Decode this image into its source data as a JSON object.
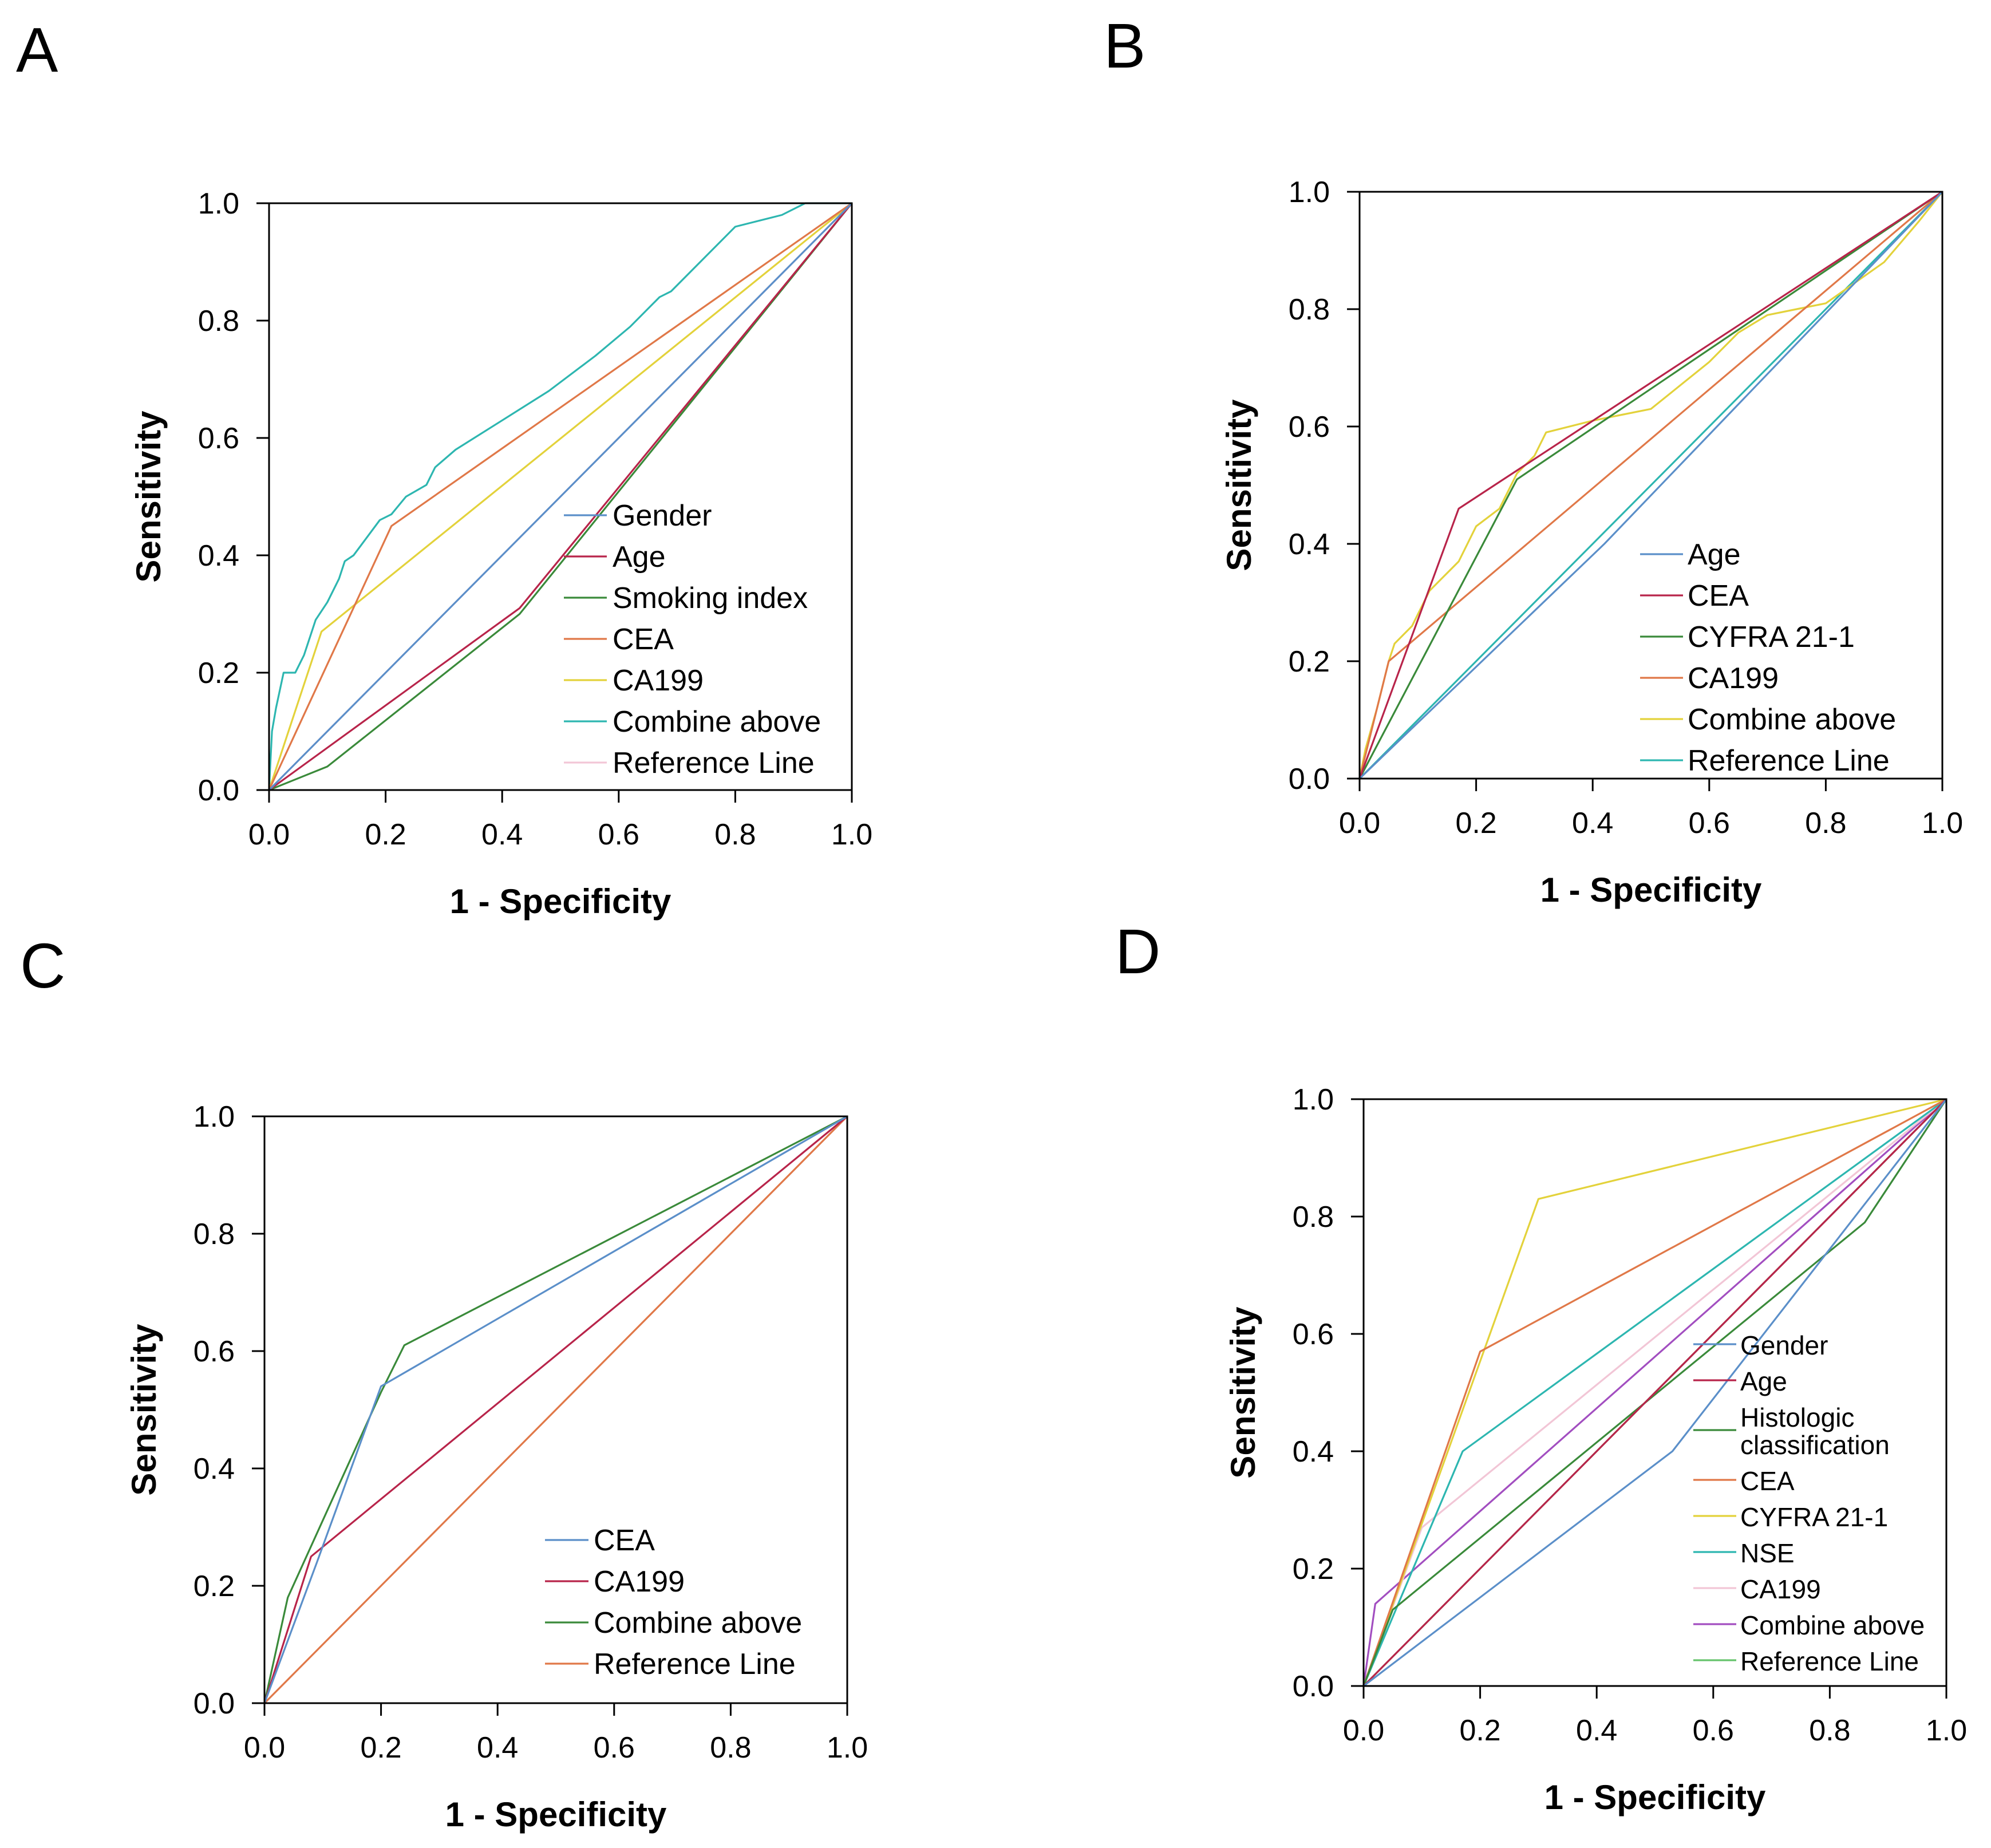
{
  "chart_data": [
    {
      "type": "line",
      "panel": "A",
      "xlabel": "1 - Specificity",
      "ylabel": "Sensitivity",
      "xlim": [
        0,
        1
      ],
      "ylim": [
        0,
        1
      ],
      "xticks": [
        "0.0",
        "0.2",
        "0.4",
        "0.6",
        "0.8",
        "1.0"
      ],
      "yticks": [
        "0.0",
        "0.2",
        "0.4",
        "0.6",
        "0.8",
        "1.0"
      ],
      "legend_position": "lower-right",
      "series": [
        {
          "name": "Gender",
          "color": "#5b8fc9",
          "points": [
            [
              0,
              0
            ],
            [
              1,
              1
            ]
          ]
        },
        {
          "name": "Age",
          "color": "#b8244a",
          "points": [
            [
              0,
              0
            ],
            [
              0.43,
              0.31
            ],
            [
              1,
              1
            ]
          ]
        },
        {
          "name": "Smoking index",
          "color": "#3a8a3a",
          "points": [
            [
              0,
              0
            ],
            [
              0.1,
              0.04
            ],
            [
              0.43,
              0.3
            ],
            [
              1,
              1
            ]
          ]
        },
        {
          "name": "CEA",
          "color": "#e07848",
          "points": [
            [
              0,
              0
            ],
            [
              0.21,
              0.45
            ],
            [
              1,
              1
            ]
          ]
        },
        {
          "name": "CA199",
          "color": "#e3d23b",
          "points": [
            [
              0,
              0
            ],
            [
              0.09,
              0.27
            ],
            [
              1,
              1
            ]
          ]
        },
        {
          "name": "Combine above",
          "color": "#2db6b0",
          "points": [
            [
              0,
              0
            ],
            [
              0.005,
              0.1
            ],
            [
              0.012,
              0.14
            ],
            [
              0.025,
              0.2
            ],
            [
              0.045,
              0.2
            ],
            [
              0.06,
              0.23
            ],
            [
              0.08,
              0.29
            ],
            [
              0.1,
              0.32
            ],
            [
              0.12,
              0.36
            ],
            [
              0.13,
              0.39
            ],
            [
              0.145,
              0.4
            ],
            [
              0.16,
              0.42
            ],
            [
              0.19,
              0.46
            ],
            [
              0.21,
              0.47
            ],
            [
              0.235,
              0.5
            ],
            [
              0.27,
              0.52
            ],
            [
              0.285,
              0.55
            ],
            [
              0.32,
              0.58
            ],
            [
              0.4,
              0.63
            ],
            [
              0.48,
              0.68
            ],
            [
              0.56,
              0.74
            ],
            [
              0.62,
              0.79
            ],
            [
              0.67,
              0.84
            ],
            [
              0.69,
              0.85
            ],
            [
              0.74,
              0.9
            ],
            [
              0.8,
              0.96
            ],
            [
              0.88,
              0.98
            ],
            [
              0.92,
              1.0
            ],
            [
              1,
              1
            ]
          ]
        },
        {
          "name": "Reference Line",
          "color": "#f2c6d6",
          "points": [
            [
              0,
              0
            ],
            [
              1,
              1
            ]
          ]
        }
      ]
    },
    {
      "type": "line",
      "panel": "B",
      "xlabel": "1 - Specificity",
      "ylabel": "Sensitivity",
      "xlim": [
        0,
        1
      ],
      "ylim": [
        0,
        1
      ],
      "xticks": [
        "0.0",
        "0.2",
        "0.4",
        "0.6",
        "0.8",
        "1.0"
      ],
      "yticks": [
        "0.0",
        "0.2",
        "0.4",
        "0.6",
        "0.8",
        "1.0"
      ],
      "legend_position": "lower-right",
      "series": [
        {
          "name": "Age",
          "color": "#5b8fc9",
          "points": [
            [
              0,
              0
            ],
            [
              0.42,
              0.4
            ],
            [
              1,
              1
            ]
          ]
        },
        {
          "name": "CEA",
          "color": "#b8244a",
          "points": [
            [
              0,
              0
            ],
            [
              0.17,
              0.46
            ],
            [
              1,
              1
            ]
          ]
        },
        {
          "name": "CYFRA 21-1",
          "color": "#3a8a3a",
          "points": [
            [
              0,
              0
            ],
            [
              0.27,
              0.51
            ],
            [
              1,
              1
            ]
          ]
        },
        {
          "name": "CA199",
          "color": "#e07848",
          "points": [
            [
              0,
              0
            ],
            [
              0.05,
              0.2
            ],
            [
              1,
              1
            ]
          ]
        },
        {
          "name": "Combine above",
          "color": "#e3d23b",
          "points": [
            [
              0,
              0
            ],
            [
              0.01,
              0.05
            ],
            [
              0.03,
              0.12
            ],
            [
              0.05,
              0.2
            ],
            [
              0.06,
              0.23
            ],
            [
              0.09,
              0.26
            ],
            [
              0.12,
              0.32
            ],
            [
              0.14,
              0.34
            ],
            [
              0.17,
              0.37
            ],
            [
              0.2,
              0.43
            ],
            [
              0.24,
              0.46
            ],
            [
              0.27,
              0.52
            ],
            [
              0.3,
              0.55
            ],
            [
              0.32,
              0.59
            ],
            [
              0.4,
              0.61
            ],
            [
              0.45,
              0.62
            ],
            [
              0.5,
              0.63
            ],
            [
              0.55,
              0.67
            ],
            [
              0.6,
              0.71
            ],
            [
              0.65,
              0.76
            ],
            [
              0.7,
              0.79
            ],
            [
              0.75,
              0.8
            ],
            [
              0.8,
              0.81
            ],
            [
              0.9,
              0.88
            ],
            [
              0.96,
              0.95
            ],
            [
              1,
              1
            ]
          ]
        },
        {
          "name": "Reference Line",
          "color": "#2db6b0",
          "points": [
            [
              0,
              0
            ],
            [
              1,
              1
            ]
          ]
        }
      ]
    },
    {
      "type": "line",
      "panel": "C",
      "xlabel": "1 - Specificity",
      "ylabel": "Sensitivity",
      "xlim": [
        0,
        1
      ],
      "ylim": [
        0,
        1
      ],
      "xticks": [
        "0.0",
        "0.2",
        "0.4",
        "0.6",
        "0.8",
        "1.0"
      ],
      "yticks": [
        "0.0",
        "0.2",
        "0.4",
        "0.6",
        "0.8",
        "1.0"
      ],
      "legend_position": "lower-right",
      "series": [
        {
          "name": "CEA",
          "color": "#5b8fc9",
          "points": [
            [
              0,
              0
            ],
            [
              0.09,
              0.24
            ],
            [
              0.2,
              0.54
            ],
            [
              1,
              1
            ]
          ]
        },
        {
          "name": "CA199",
          "color": "#b8244a",
          "points": [
            [
              0,
              0
            ],
            [
              0.08,
              0.25
            ],
            [
              1,
              1
            ]
          ]
        },
        {
          "name": "Combine above",
          "color": "#3a8a3a",
          "points": [
            [
              0,
              0
            ],
            [
              0.04,
              0.18
            ],
            [
              0.2,
              0.53
            ],
            [
              0.24,
              0.61
            ],
            [
              1,
              1
            ]
          ]
        },
        {
          "name": "Reference Line",
          "color": "#e07848",
          "points": [
            [
              0,
              0
            ],
            [
              1,
              1
            ]
          ]
        }
      ]
    },
    {
      "type": "line",
      "panel": "D",
      "xlabel": "1 - Specificity",
      "ylabel": "Sensitivity",
      "xlim": [
        0,
        1
      ],
      "ylim": [
        0,
        1
      ],
      "xticks": [
        "0.0",
        "0.2",
        "0.4",
        "0.6",
        "0.8",
        "1.0"
      ],
      "yticks": [
        "0.0",
        "0.2",
        "0.4",
        "0.6",
        "0.8",
        "1.0"
      ],
      "legend_position": "lower-right",
      "series": [
        {
          "name": "Gender",
          "color": "#5b8fc9",
          "points": [
            [
              0,
              0
            ],
            [
              0.53,
              0.4
            ],
            [
              1,
              1
            ]
          ]
        },
        {
          "name": "Age",
          "color": "#b8244a",
          "points": [
            [
              0,
              0
            ],
            [
              1,
              1
            ]
          ]
        },
        {
          "name": "Histologic classification",
          "color": "#3a8a3a",
          "points": [
            [
              0,
              0
            ],
            [
              0.05,
              0.13
            ],
            [
              0.86,
              0.79
            ],
            [
              1,
              1
            ]
          ]
        },
        {
          "name": "CEA",
          "color": "#e07848",
          "points": [
            [
              0,
              0
            ],
            [
              0.2,
              0.57
            ],
            [
              1,
              1
            ]
          ]
        },
        {
          "name": "CYFRA 21-1",
          "color": "#e3d23b",
          "points": [
            [
              0,
              0
            ],
            [
              0.3,
              0.83
            ],
            [
              1,
              1
            ]
          ]
        },
        {
          "name": "NSE",
          "color": "#2db6b0",
          "points": [
            [
              0,
              0
            ],
            [
              0.17,
              0.4
            ],
            [
              1,
              1
            ]
          ]
        },
        {
          "name": "CA199",
          "color": "#f2c6d6",
          "points": [
            [
              0,
              0
            ],
            [
              0.1,
              0.27
            ],
            [
              1,
              1
            ]
          ]
        },
        {
          "name": "Combine above",
          "color": "#a24ec0",
          "points": [
            [
              0,
              0
            ],
            [
              0.02,
              0.14
            ],
            [
              1,
              1
            ]
          ]
        },
        {
          "name": "Reference Line",
          "color": "#66c46c",
          "points": [
            [
              0,
              0
            ],
            [
              1,
              1
            ]
          ]
        }
      ]
    }
  ]
}
